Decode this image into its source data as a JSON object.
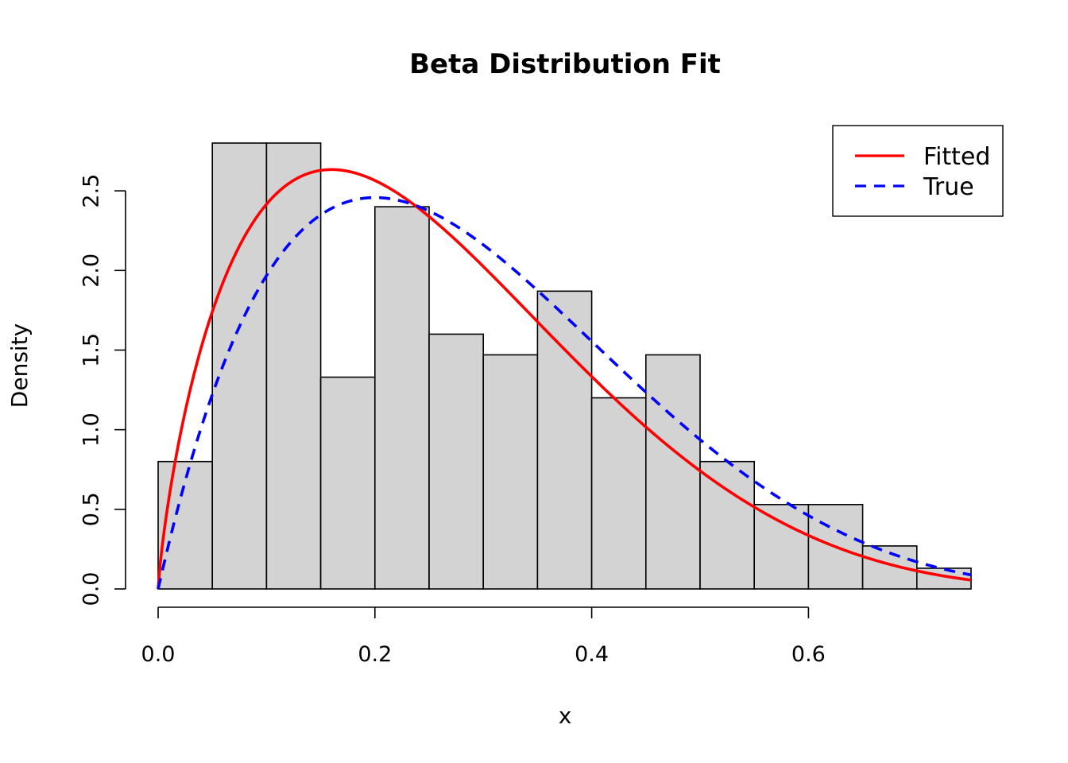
{
  "chart_data": {
    "type": "bar",
    "title": "Beta Distribution Fit",
    "xlabel": "x",
    "ylabel": "Density",
    "xlim": [
      0.0,
      0.75
    ],
    "ylim": [
      0.0,
      2.8
    ],
    "x_ticks": [
      "0.0",
      "0.2",
      "0.4",
      "0.6"
    ],
    "y_ticks": [
      "0.0",
      "0.5",
      "1.0",
      "1.5",
      "2.0",
      "2.5"
    ],
    "grid": false,
    "histogram": {
      "bin_edges": [
        0.0,
        0.05,
        0.1,
        0.15,
        0.2,
        0.25,
        0.3,
        0.35,
        0.4,
        0.45,
        0.5,
        0.55,
        0.6,
        0.65,
        0.7,
        0.75
      ],
      "densities": [
        0.8,
        2.8,
        2.8,
        1.33,
        2.4,
        1.6,
        1.47,
        1.87,
        1.2,
        1.47,
        0.8,
        0.53,
        0.53,
        0.27,
        0.13
      ],
      "fill_color": "#d3d3d3",
      "edge_color": "#000000"
    },
    "series": [
      {
        "name": "Fitted",
        "distribution": "beta",
        "alpha": 1.8,
        "beta": 5.2,
        "color": "#ff0000",
        "line_style": "solid"
      },
      {
        "name": "True",
        "distribution": "beta",
        "alpha": 2.0,
        "beta": 5.0,
        "color": "#0000ff",
        "line_style": "dashed"
      }
    ],
    "legend": {
      "position": "top-right",
      "entries": [
        "Fitted",
        "True"
      ]
    }
  }
}
